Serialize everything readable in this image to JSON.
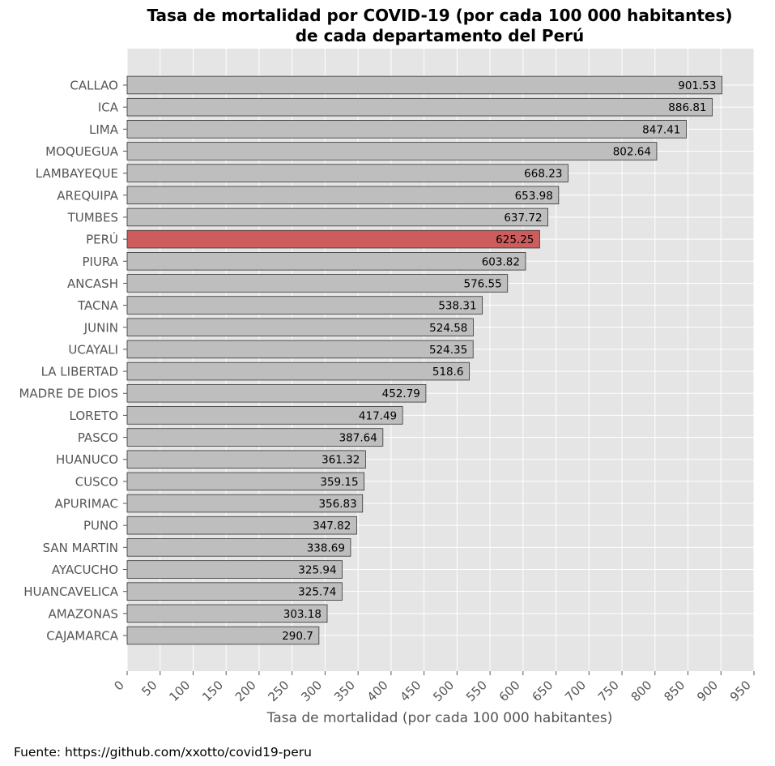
{
  "chart_data": {
    "type": "bar",
    "orientation": "horizontal",
    "title": "Tasa de mortalidad por COVID-19 (por cada 100 000 habitantes)",
    "subtitle": "de cada departamento del Perú",
    "xlabel": "Tasa de mortalidad (por cada 100 000 habitantes)",
    "ylabel": "",
    "xlim": [
      0,
      950
    ],
    "xticks": [
      "0",
      "50",
      "100",
      "150",
      "200",
      "250",
      "300",
      "350",
      "400",
      "450",
      "500",
      "550",
      "600",
      "650",
      "700",
      "750",
      "800",
      "850",
      "900",
      "950"
    ],
    "grid": true,
    "categories": [
      "CALLAO",
      "ICA",
      "LIMA",
      "MOQUEGUA",
      "LAMBAYEQUE",
      "AREQUIPA",
      "TUMBES",
      "PERÚ",
      "PIURA",
      "ANCASH",
      "TACNA",
      "JUNIN",
      "UCAYALI",
      "LA LIBERTAD",
      "MADRE DE DIOS",
      "LORETO",
      "PASCO",
      "HUANUCO",
      "CUSCO",
      "APURIMAC",
      "PUNO",
      "SAN MARTIN",
      "AYACUCHO",
      "HUANCAVELICA",
      "AMAZONAS",
      "CAJAMARCA"
    ],
    "values": [
      901.53,
      886.81,
      847.41,
      802.64,
      668.23,
      653.98,
      637.72,
      625.25,
      603.82,
      576.55,
      538.31,
      524.58,
      524.35,
      518.6,
      452.79,
      417.49,
      387.64,
      361.32,
      359.15,
      356.83,
      347.82,
      338.69,
      325.94,
      325.74,
      303.18,
      290.7
    ],
    "value_labels": [
      "901.53",
      "886.81",
      "847.41",
      "802.64",
      "668.23",
      "653.98",
      "637.72",
      "625.25",
      "603.82",
      "576.55",
      "538.31",
      "524.58",
      "524.35",
      "518.6",
      "452.79",
      "417.49",
      "387.64",
      "361.32",
      "359.15",
      "356.83",
      "347.82",
      "338.69",
      "325.94",
      "325.74",
      "303.18",
      "290.7"
    ],
    "highlight_category": "PERÚ",
    "colors": {
      "bar": "#bebebe",
      "highlight": "#cd5c5c",
      "bar_edge": "#333333",
      "plot_background": "#e5e5e5",
      "grid": "#ffffff"
    }
  },
  "footer": {
    "source": "Fuente: https://github.com/xxotto/covid19-peru"
  }
}
